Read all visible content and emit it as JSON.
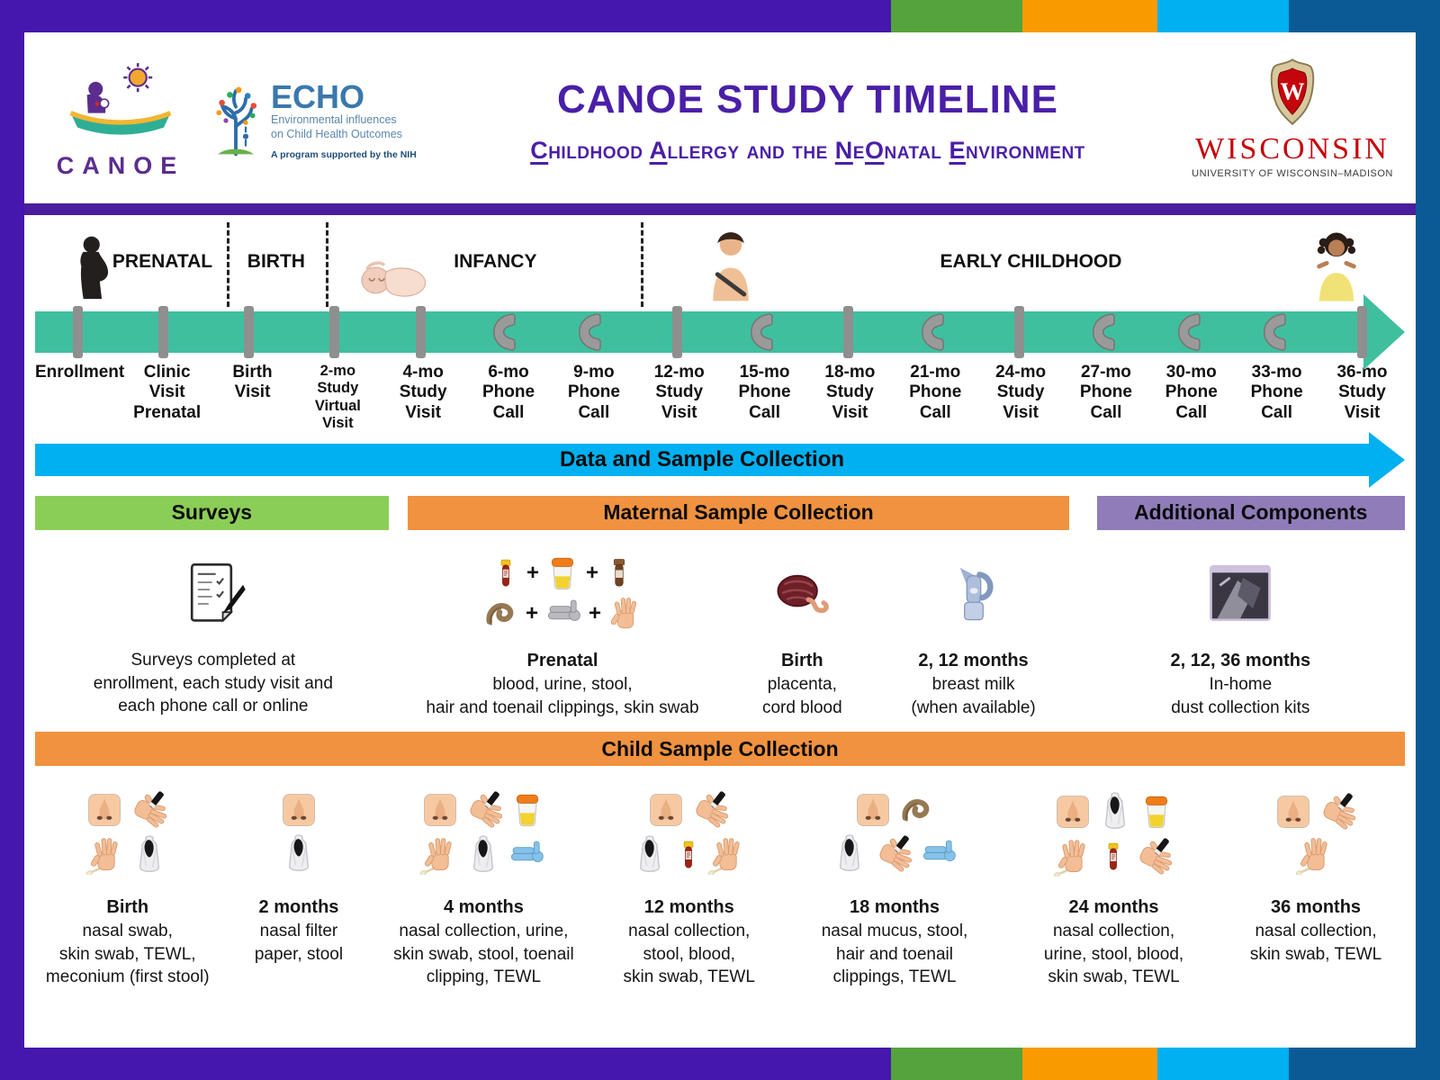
{
  "palette": {
    "frame_purple": "#4517ad",
    "frame_green": "#55a33c",
    "frame_orange": "#f99b00",
    "frame_light_blue": "#00b0f0",
    "frame_dark_blue": "#0b5a96",
    "title_purple": "#4a1fa8",
    "timeline_teal": "#40bf9f",
    "data_arrow_blue": "#00b0f0",
    "surveys_green": "#8bce57",
    "sample_orange": "#f0923f",
    "additional_purple": "#8f7cb8",
    "marker_gray": "#8f8f8f",
    "wisconsin_red": "#c5050c"
  },
  "header": {
    "canoe_logo_text": "CANOE",
    "echo": {
      "name": "ECHO",
      "line1": "Environmental influences",
      "line2": "on Child Health Outcomes",
      "tagline": "A program supported by the NIH"
    },
    "title": "CANOE STUDY TIMELINE",
    "subtitle_segments": [
      {
        "text": "C",
        "u": true
      },
      {
        "text": "hildhood ",
        "u": false
      },
      {
        "text": "A",
        "u": true
      },
      {
        "text": "llergy and the ",
        "u": false
      },
      {
        "text": "N",
        "u": true
      },
      {
        "text": "e",
        "u": false
      },
      {
        "text": "O",
        "u": true
      },
      {
        "text": "natal ",
        "u": false
      },
      {
        "text": "E",
        "u": true
      },
      {
        "text": "nvironment",
        "u": false
      }
    ],
    "wisconsin": {
      "crest_letter": "W",
      "wordmark": "WISCONSIN",
      "sub": "UNIVERSITY OF WISCONSIN–MADISON"
    }
  },
  "timeline": {
    "phases": [
      {
        "label": "PRENATAL"
      },
      {
        "label": "BIRTH"
      },
      {
        "label": "INFANCY"
      },
      {
        "label": "EARLY CHILDHOOD"
      }
    ],
    "photos": [
      "pregnant-woman",
      "sleeping-baby",
      "toddler",
      "little-girl"
    ],
    "points": [
      {
        "marker": "tick",
        "label_lines": [
          "Enrollment"
        ]
      },
      {
        "marker": "tick",
        "label_lines": [
          "Clinic",
          "Visit",
          "Prenatal"
        ]
      },
      {
        "marker": "tick",
        "label_lines": [
          "Birth",
          "Visit"
        ]
      },
      {
        "marker": "tick",
        "label_lines": [
          "2-mo",
          "Study",
          "Virtual",
          "Visit"
        ],
        "small": true
      },
      {
        "marker": "tick",
        "label_lines": [
          "4-mo",
          "Study",
          "Visit"
        ]
      },
      {
        "marker": "phone",
        "label_lines": [
          "6-mo",
          "Phone",
          "Call"
        ]
      },
      {
        "marker": "phone",
        "label_lines": [
          "9-mo",
          "Phone",
          "Call"
        ]
      },
      {
        "marker": "tick",
        "label_lines": [
          "12-mo",
          "Study",
          "Visit"
        ]
      },
      {
        "marker": "phone",
        "label_lines": [
          "15-mo",
          "Phone",
          "Call"
        ]
      },
      {
        "marker": "tick",
        "label_lines": [
          "18-mo",
          "Study",
          "Visit"
        ]
      },
      {
        "marker": "phone",
        "label_lines": [
          "21-mo",
          "Phone",
          "Call"
        ]
      },
      {
        "marker": "tick",
        "label_lines": [
          "24-mo",
          "Study",
          "Visit"
        ]
      },
      {
        "marker": "phone",
        "label_lines": [
          "27-mo",
          "Phone",
          "Call"
        ]
      },
      {
        "marker": "phone",
        "label_lines": [
          "30-mo",
          "Phone",
          "Call"
        ]
      },
      {
        "marker": "phone",
        "label_lines": [
          "33-mo",
          "Phone",
          "Call"
        ]
      },
      {
        "marker": "tick",
        "label_lines": [
          "36-mo",
          "Study",
          "Visit"
        ]
      }
    ]
  },
  "data_arrow_label": "Data and Sample Collection",
  "section_bars": {
    "surveys": "Surveys",
    "maternal": "Maternal Sample Collection",
    "additional": "Additional Components"
  },
  "sample_row": {
    "columns": [
      {
        "title": "",
        "caption_lines": [
          "Surveys completed at",
          "enrollment, each study visit and",
          "each phone call or online"
        ],
        "icon_rows": [
          [
            "survey"
          ]
        ]
      },
      {
        "title": "Prenatal",
        "caption_lines": [
          "blood, urine, stool,",
          "hair and toenail clippings, skin swab"
        ],
        "icon_rows": [
          [
            "blood-tube",
            "plus",
            "urine-cup",
            "plus",
            "stool-vial"
          ],
          [
            "hair",
            "plus",
            "clipper-gray",
            "plus",
            "hand"
          ]
        ]
      },
      {
        "title": "Birth",
        "caption_lines": [
          "placenta,",
          "cord blood"
        ],
        "icon_rows": [
          [
            "placenta"
          ]
        ]
      },
      {
        "title": "2, 12 months",
        "caption_lines": [
          "breast milk",
          "(when available)"
        ],
        "icon_rows": [
          [
            "breast-pump"
          ]
        ]
      },
      {
        "title": "2, 12, 36 months",
        "caption_lines": [
          "In-home",
          "dust collection kits"
        ],
        "icon_rows": [
          [
            "dust-kit"
          ]
        ]
      }
    ]
  },
  "child_section": {
    "bar_label": "Child Sample Collection",
    "columns": [
      {
        "title": "Birth",
        "caption_lines": [
          "nasal swab,",
          "skin swab, TEWL,",
          "meconium (first stool)"
        ],
        "icon_rows": [
          [
            "nose",
            "hand-tewl"
          ],
          [
            "hand-swab",
            "stool-bag"
          ]
        ]
      },
      {
        "title": "2 months",
        "caption_lines": [
          "nasal filter",
          "paper, stool"
        ],
        "icon_rows": [
          [
            "nose"
          ],
          [
            "stool-bag"
          ]
        ]
      },
      {
        "title": "4 months",
        "caption_lines": [
          "nasal collection, urine,",
          "skin swab, stool, toenail",
          "clipping, TEWL"
        ],
        "icon_rows": [
          [
            "nose",
            "hand-tewl",
            "urine-cup"
          ],
          [
            "hand-swab",
            "stool-bag",
            "clipper-blue"
          ]
        ]
      },
      {
        "title": "12 months",
        "caption_lines": [
          "nasal collection,",
          "stool, blood,",
          "skin swab, TEWL"
        ],
        "icon_rows": [
          [
            "nose",
            "hand-tewl"
          ],
          [
            "stool-bag",
            "blood-tube",
            "hand-swab"
          ]
        ]
      },
      {
        "title": "18 months",
        "caption_lines": [
          "nasal mucus, stool,",
          "hair and toenail",
          "clippings, TEWL"
        ],
        "icon_rows": [
          [
            "nose",
            "hair"
          ],
          [
            "stool-bag",
            "hand-tewl",
            "clipper-blue"
          ]
        ]
      },
      {
        "title": "24 months",
        "caption_lines": [
          "nasal collection,",
          "urine, stool, blood,",
          "skin swab, TEWL"
        ],
        "icon_rows": [
          [
            "nose",
            "stool-bag",
            "urine-cup"
          ],
          [
            "hand-swab",
            "blood-tube",
            "hand-tewl"
          ]
        ]
      },
      {
        "title": "36 months",
        "caption_lines": [
          "nasal collection,",
          "skin swab, TEWL"
        ],
        "icon_rows": [
          [
            "nose",
            "hand-tewl"
          ],
          [
            "hand-swab"
          ]
        ]
      }
    ]
  }
}
